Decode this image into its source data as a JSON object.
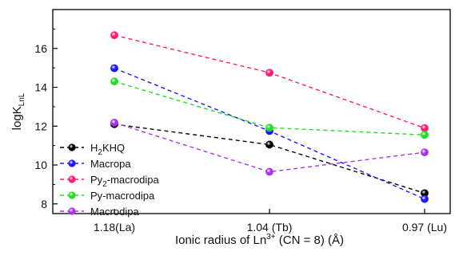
{
  "chart_data": {
    "type": "line",
    "categories": [
      "1.18(La)",
      "1.04 (Tb)",
      "0.97 (Lu)"
    ],
    "xlabel_parts": [
      "Ionic radius of Ln",
      "3+",
      " (CN = 8) (Å)"
    ],
    "ylabel_parts": [
      "logK",
      "LnL"
    ],
    "ylim": [
      7.5,
      18
    ],
    "yticks": [
      8,
      10,
      12,
      14,
      16
    ],
    "ytick_labels": [
      "8",
      "10",
      "12",
      "14",
      "16"
    ],
    "grid": false,
    "legend_position": "bottom-left",
    "series": [
      {
        "name_parts": [
          "H",
          "2",
          "KHQ"
        ],
        "color": "#000000",
        "values": [
          12.1,
          11.05,
          8.55
        ]
      },
      {
        "name_parts": [
          "Macropa",
          "",
          ""
        ],
        "color": "#1a1aff",
        "values": [
          14.98,
          11.75,
          8.25
        ]
      },
      {
        "name_parts": [
          "Py",
          "2",
          "-macrodipa"
        ],
        "color": "#ff1a75",
        "values": [
          16.68,
          14.75,
          11.9
        ]
      },
      {
        "name_parts": [
          "Py-macrodipa",
          "",
          ""
        ],
        "color": "#22dd22",
        "values": [
          14.3,
          11.92,
          11.55
        ]
      },
      {
        "name_parts": [
          "Macrodipa",
          "",
          ""
        ],
        "color": "#aa33ee",
        "values": [
          12.18,
          9.65,
          10.65
        ]
      }
    ]
  }
}
